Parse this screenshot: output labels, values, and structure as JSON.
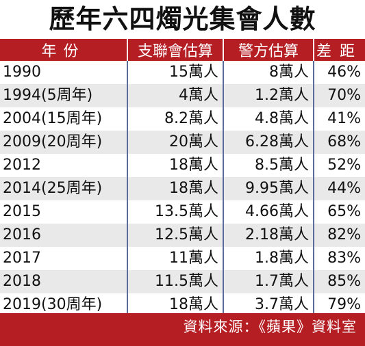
{
  "title": "歷年六四燭光集會人數",
  "headers": [
    "年份",
    "支聯會估算",
    "警方估算",
    "差距"
  ],
  "rows": [
    {
      "year": "1990",
      "hkasp": "15萬人",
      "police": "8萬人",
      "gap": "46%"
    },
    {
      "year": "1994(5周年)",
      "hkasp": "4萬人",
      "police": "1.2萬人",
      "gap": "70%"
    },
    {
      "year": "2004(15周年)",
      "hkasp": "8.2萬人",
      "police": "4.8萬人",
      "gap": "41%"
    },
    {
      "year": "2009(20周年)",
      "hkasp": "20萬人",
      "police": "6.28萬人",
      "gap": "68%"
    },
    {
      "year": "2012",
      "hkasp": "18萬人",
      "police": "8.5萬人",
      "gap": "52%"
    },
    {
      "year": "2014(25周年)",
      "hkasp": "18萬人",
      "police": "9.95萬人",
      "gap": "44%"
    },
    {
      "year": "2015",
      "hkasp": "13.5萬人",
      "police": "4.66萬人",
      "gap": "65%"
    },
    {
      "year": "2016",
      "hkasp": "12.5萬人",
      "police": "2.18萬人",
      "gap": "82%"
    },
    {
      "year": "2017",
      "hkasp": "11萬人",
      "police": "1.8萬人",
      "gap": "83%"
    },
    {
      "year": "2018",
      "hkasp": "11.5萬人",
      "police": "1.7萬人",
      "gap": "85%"
    },
    {
      "year": "2019(30周年)",
      "hkasp": "18萬人",
      "police": "3.7萬人",
      "gap": "79%"
    }
  ],
  "footer": "資料來源：《蘋果》資料室",
  "colors": {
    "accent_red": "#b51e23",
    "divider_blue": "#5a6d9a",
    "stripe_gray": "#e9e9e9"
  }
}
